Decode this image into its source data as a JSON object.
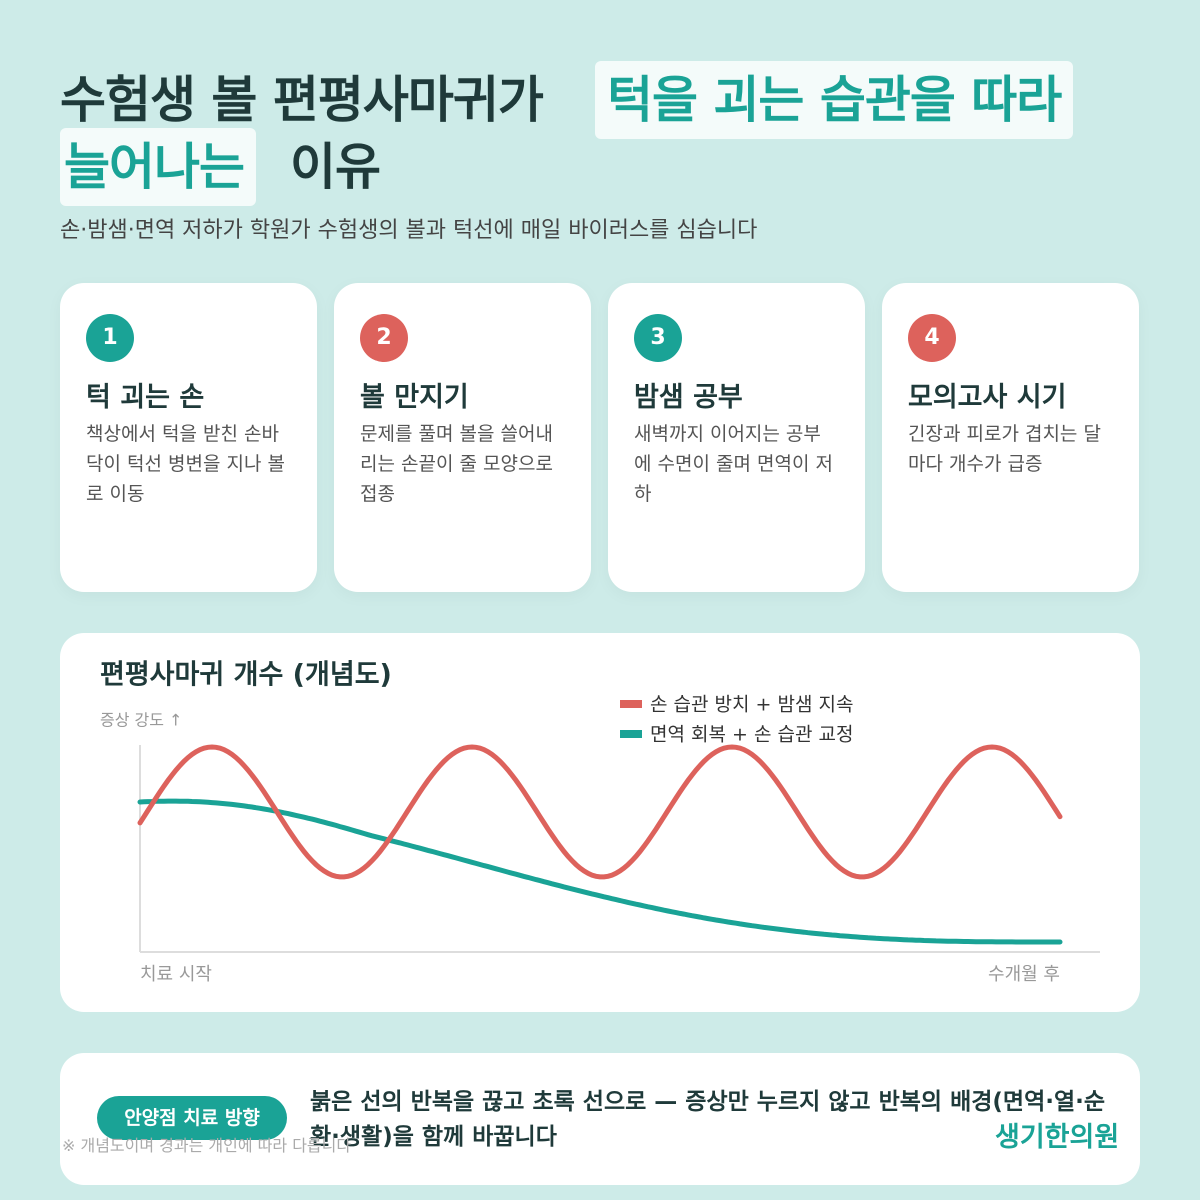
{
  "header": {
    "title_line1": "수험생 볼 편평사마귀가",
    "title_highlight1": "턱을 괴는 습관을 따라",
    "title_highlight2": "늘어나는",
    "title_line2": "이유",
    "subtitle": "손·밤샘·면역 저하가 학원가 수험생의 볼과 턱선에 매일 바이러스를 심습니다"
  },
  "cards": [
    {
      "number": "1",
      "title": "턱 괴는 손",
      "text": "책상에서 턱을 받친 손바닥이 턱선 병변을 지나 볼로 이동"
    },
    {
      "number": "2",
      "title": "볼 만지기",
      "text": "문제를 풀며 볼을 쓸어내리는 손끝이 줄 모양으로 접종"
    },
    {
      "number": "3",
      "title": "밤샘 공부",
      "text": "새벽까지 이어지는 공부에 수면이 줄며 면역이 저하"
    },
    {
      "number": "4",
      "title": "모의고사 시기",
      "text": "긴장과 피로가 겹치는 달마다 개수가 급증"
    }
  ],
  "chart": {
    "title": "편평사마귀 개수 (개념도)",
    "y_label": "증상 강도 ↑",
    "x_start": "치료 시작",
    "x_end": "수개월 후",
    "legend": [
      "손 습관 방치 + 밤샘 지속",
      "면역 회복 + 손 습관 교정"
    ]
  },
  "footer": {
    "badge": "안양점 치료 방향",
    "text": "붉은 선의 반복을 끊고 초록 선으로 — 증상만 누르지 않고 반복의 배경(면역·열·순환·생활)을 함께 바꿉니다",
    "note": "※ 개념도이며 경과는 개인에 따라 다릅니다",
    "brand": "생기한의원"
  }
}
